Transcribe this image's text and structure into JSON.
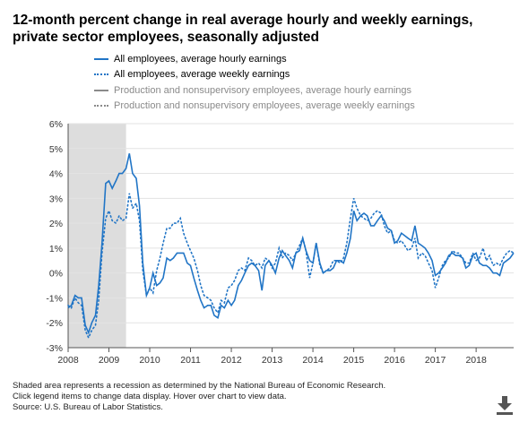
{
  "title": "12-month percent change in real average hourly and weekly earnings, private sector employees, seasonally adjusted",
  "legend": [
    {
      "label": "All employees, average hourly earnings",
      "color": "#2175c6",
      "style": "solid",
      "active": true
    },
    {
      "label": "All employees, average weekly earnings",
      "color": "#2175c6",
      "style": "dotted",
      "active": true
    },
    {
      "label": "Production and nonsupervisory employees, average hourly earnings",
      "color": "#8a8a8a",
      "style": "solid",
      "active": false
    },
    {
      "label": "Production and nonsupervisory employees, average weekly earnings",
      "color": "#8a8a8a",
      "style": "dotted",
      "active": false
    }
  ],
  "footnotes": [
    "Shaded area represents a recession as determined by the National Bureau of Economic Research.",
    "Click legend items to change data display. Hover over chart to view data.",
    "Source: U.S. Bureau of Labor Statistics."
  ],
  "icons": {
    "download": "download-icon"
  },
  "chart_data": {
    "type": "line",
    "title": "12-month percent change in real average hourly and weekly earnings, private sector employees, seasonally adjusted",
    "xlim": [
      2008.0,
      2018.92
    ],
    "ylim": [
      -3,
      6
    ],
    "y_ticks": [
      -3,
      -2,
      -1,
      0,
      1,
      2,
      3,
      4,
      5,
      6
    ],
    "y_tick_labels": [
      "-3%",
      "-2%",
      "-1%",
      "0%",
      "1%",
      "2%",
      "3%",
      "4%",
      "5%",
      "6%"
    ],
    "x_ticks": [
      2008,
      2009,
      2010,
      2011,
      2012,
      2013,
      2014,
      2015,
      2016,
      2017,
      2018
    ],
    "x_tick_labels": [
      "2008",
      "2009",
      "2010",
      "2011",
      "2012",
      "2013",
      "2014",
      "2015",
      "2016",
      "2017",
      "2018"
    ],
    "recession": {
      "start": 2008.0,
      "end": 2009.42,
      "color": "#dddddd"
    },
    "grid": "horizontal",
    "series": [
      {
        "name": "All employees, average hourly earnings",
        "color": "#2175c6",
        "style": "solid",
        "points": [
          [
            2008.0,
            -1.4
          ],
          [
            2008.08,
            -1.3
          ],
          [
            2008.17,
            -0.9
          ],
          [
            2008.25,
            -1.0
          ],
          [
            2008.33,
            -1.0
          ],
          [
            2008.42,
            -2.1
          ],
          [
            2008.5,
            -2.4
          ],
          [
            2008.58,
            -2.0
          ],
          [
            2008.67,
            -1.7
          ],
          [
            2008.75,
            -0.5
          ],
          [
            2008.83,
            1.2
          ],
          [
            2008.92,
            3.6
          ],
          [
            2009.0,
            3.7
          ],
          [
            2009.08,
            3.4
          ],
          [
            2009.17,
            3.7
          ],
          [
            2009.25,
            4.0
          ],
          [
            2009.33,
            4.0
          ],
          [
            2009.42,
            4.2
          ],
          [
            2009.5,
            4.8
          ],
          [
            2009.58,
            4.0
          ],
          [
            2009.67,
            3.8
          ],
          [
            2009.75,
            2.7
          ],
          [
            2009.83,
            0.4
          ],
          [
            2009.92,
            -0.9
          ],
          [
            2010.0,
            -0.6
          ],
          [
            2010.08,
            0.0
          ],
          [
            2010.17,
            -0.5
          ],
          [
            2010.25,
            -0.4
          ],
          [
            2010.33,
            -0.2
          ],
          [
            2010.42,
            0.6
          ],
          [
            2010.5,
            0.5
          ],
          [
            2010.58,
            0.6
          ],
          [
            2010.67,
            0.8
          ],
          [
            2010.75,
            0.8
          ],
          [
            2010.83,
            0.8
          ],
          [
            2010.92,
            0.4
          ],
          [
            2011.0,
            0.3
          ],
          [
            2011.08,
            -0.2
          ],
          [
            2011.17,
            -0.7
          ],
          [
            2011.25,
            -1.1
          ],
          [
            2011.33,
            -1.4
          ],
          [
            2011.42,
            -1.3
          ],
          [
            2011.5,
            -1.3
          ],
          [
            2011.58,
            -1.7
          ],
          [
            2011.67,
            -1.8
          ],
          [
            2011.75,
            -1.3
          ],
          [
            2011.83,
            -1.4
          ],
          [
            2011.92,
            -1.1
          ],
          [
            2012.0,
            -1.3
          ],
          [
            2012.08,
            -1.1
          ],
          [
            2012.17,
            -0.5
          ],
          [
            2012.25,
            -0.3
          ],
          [
            2012.33,
            0.0
          ],
          [
            2012.42,
            0.3
          ],
          [
            2012.5,
            0.4
          ],
          [
            2012.58,
            0.3
          ],
          [
            2012.67,
            0.1
          ],
          [
            2012.75,
            -0.7
          ],
          [
            2012.83,
            0.3
          ],
          [
            2012.92,
            0.5
          ],
          [
            2013.0,
            0.3
          ],
          [
            2013.08,
            0.0
          ],
          [
            2013.17,
            0.6
          ],
          [
            2013.25,
            0.9
          ],
          [
            2013.33,
            0.7
          ],
          [
            2013.42,
            0.5
          ],
          [
            2013.5,
            0.2
          ],
          [
            2013.58,
            0.8
          ],
          [
            2013.67,
            0.9
          ],
          [
            2013.75,
            1.4
          ],
          [
            2013.83,
            0.9
          ],
          [
            2013.92,
            0.5
          ],
          [
            2014.0,
            0.4
          ],
          [
            2014.08,
            1.2
          ],
          [
            2014.17,
            0.4
          ],
          [
            2014.25,
            0.0
          ],
          [
            2014.33,
            0.1
          ],
          [
            2014.42,
            0.1
          ],
          [
            2014.5,
            0.2
          ],
          [
            2014.58,
            0.5
          ],
          [
            2014.67,
            0.5
          ],
          [
            2014.75,
            0.4
          ],
          [
            2014.83,
            0.8
          ],
          [
            2014.92,
            1.4
          ],
          [
            2015.0,
            2.5
          ],
          [
            2015.08,
            2.1
          ],
          [
            2015.17,
            2.3
          ],
          [
            2015.25,
            2.4
          ],
          [
            2015.33,
            2.3
          ],
          [
            2015.42,
            1.9
          ],
          [
            2015.5,
            1.9
          ],
          [
            2015.58,
            2.1
          ],
          [
            2015.67,
            2.3
          ],
          [
            2015.75,
            2.1
          ],
          [
            2015.83,
            1.8
          ],
          [
            2015.92,
            1.7
          ],
          [
            2016.0,
            1.2
          ],
          [
            2016.08,
            1.3
          ],
          [
            2016.17,
            1.6
          ],
          [
            2016.25,
            1.5
          ],
          [
            2016.33,
            1.4
          ],
          [
            2016.42,
            1.3
          ],
          [
            2016.5,
            1.9
          ],
          [
            2016.58,
            1.2
          ],
          [
            2016.67,
            1.1
          ],
          [
            2016.75,
            1.0
          ],
          [
            2016.83,
            0.8
          ],
          [
            2016.92,
            0.5
          ],
          [
            2017.0,
            -0.1
          ],
          [
            2017.08,
            0.0
          ],
          [
            2017.17,
            0.2
          ],
          [
            2017.25,
            0.4
          ],
          [
            2017.33,
            0.7
          ],
          [
            2017.42,
            0.8
          ],
          [
            2017.5,
            0.7
          ],
          [
            2017.58,
            0.7
          ],
          [
            2017.67,
            0.6
          ],
          [
            2017.75,
            0.2
          ],
          [
            2017.83,
            0.3
          ],
          [
            2017.92,
            0.7
          ],
          [
            2018.0,
            0.8
          ],
          [
            2018.08,
            0.4
          ],
          [
            2018.17,
            0.3
          ],
          [
            2018.25,
            0.3
          ],
          [
            2018.33,
            0.2
          ],
          [
            2018.42,
            0.0
          ],
          [
            2018.5,
            0.0
          ],
          [
            2018.58,
            -0.1
          ],
          [
            2018.67,
            0.4
          ],
          [
            2018.75,
            0.5
          ],
          [
            2018.83,
            0.6
          ],
          [
            2018.92,
            0.8
          ]
        ]
      },
      {
        "name": "All employees, average weekly earnings",
        "color": "#2175c6",
        "style": "dotted",
        "points": [
          [
            2008.0,
            -1.3
          ],
          [
            2008.08,
            -1.4
          ],
          [
            2008.17,
            -1.0
          ],
          [
            2008.25,
            -1.2
          ],
          [
            2008.33,
            -1.3
          ],
          [
            2008.42,
            -2.3
          ],
          [
            2008.5,
            -2.6
          ],
          [
            2008.58,
            -2.3
          ],
          [
            2008.67,
            -2.1
          ],
          [
            2008.75,
            -1.1
          ],
          [
            2008.83,
            0.8
          ],
          [
            2008.92,
            2.2
          ],
          [
            2009.0,
            2.5
          ],
          [
            2009.08,
            2.1
          ],
          [
            2009.17,
            2.0
          ],
          [
            2009.25,
            2.3
          ],
          [
            2009.33,
            2.1
          ],
          [
            2009.42,
            2.2
          ],
          [
            2009.5,
            3.2
          ],
          [
            2009.58,
            2.6
          ],
          [
            2009.67,
            2.8
          ],
          [
            2009.75,
            2.1
          ],
          [
            2009.83,
            0.1
          ],
          [
            2009.92,
            -0.9
          ],
          [
            2010.0,
            -0.6
          ],
          [
            2010.08,
            -0.8
          ],
          [
            2010.17,
            0.1
          ],
          [
            2010.25,
            0.6
          ],
          [
            2010.33,
            1.2
          ],
          [
            2010.42,
            1.8
          ],
          [
            2010.5,
            1.8
          ],
          [
            2010.58,
            2.0
          ],
          [
            2010.67,
            2.0
          ],
          [
            2010.75,
            2.2
          ],
          [
            2010.83,
            1.6
          ],
          [
            2010.92,
            1.2
          ],
          [
            2011.0,
            0.9
          ],
          [
            2011.08,
            0.6
          ],
          [
            2011.17,
            0.1
          ],
          [
            2011.25,
            -0.5
          ],
          [
            2011.33,
            -0.9
          ],
          [
            2011.42,
            -1.0
          ],
          [
            2011.5,
            -1.1
          ],
          [
            2011.58,
            -1.4
          ],
          [
            2011.67,
            -1.6
          ],
          [
            2011.75,
            -1.1
          ],
          [
            2011.83,
            -1.2
          ],
          [
            2011.92,
            -0.6
          ],
          [
            2012.0,
            -0.5
          ],
          [
            2012.08,
            -0.3
          ],
          [
            2012.17,
            0.1
          ],
          [
            2012.25,
            0.2
          ],
          [
            2012.33,
            0.1
          ],
          [
            2012.42,
            0.6
          ],
          [
            2012.5,
            0.5
          ],
          [
            2012.58,
            0.3
          ],
          [
            2012.67,
            0.4
          ],
          [
            2012.75,
            0.2
          ],
          [
            2012.83,
            0.6
          ],
          [
            2012.92,
            0.5
          ],
          [
            2013.0,
            0.2
          ],
          [
            2013.08,
            0.4
          ],
          [
            2013.17,
            1.0
          ],
          [
            2013.25,
            0.6
          ],
          [
            2013.33,
            0.8
          ],
          [
            2013.42,
            0.7
          ],
          [
            2013.5,
            0.5
          ],
          [
            2013.58,
            0.8
          ],
          [
            2013.67,
            1.1
          ],
          [
            2013.75,
            1.4
          ],
          [
            2013.83,
            0.9
          ],
          [
            2013.92,
            -0.2
          ],
          [
            2014.0,
            0.4
          ],
          [
            2014.08,
            1.2
          ],
          [
            2014.17,
            0.3
          ],
          [
            2014.25,
            0.0
          ],
          [
            2014.33,
            0.1
          ],
          [
            2014.42,
            0.2
          ],
          [
            2014.5,
            0.5
          ],
          [
            2014.58,
            0.5
          ],
          [
            2014.67,
            0.4
          ],
          [
            2014.75,
            0.6
          ],
          [
            2014.83,
            1.2
          ],
          [
            2014.92,
            2.2
          ],
          [
            2015.0,
            3.0
          ],
          [
            2015.08,
            2.6
          ],
          [
            2015.17,
            2.3
          ],
          [
            2015.25,
            2.2
          ],
          [
            2015.33,
            2.1
          ],
          [
            2015.42,
            2.2
          ],
          [
            2015.5,
            2.4
          ],
          [
            2015.58,
            2.5
          ],
          [
            2015.67,
            2.4
          ],
          [
            2015.75,
            1.9
          ],
          [
            2015.83,
            1.6
          ],
          [
            2015.92,
            1.7
          ],
          [
            2016.0,
            1.3
          ],
          [
            2016.08,
            1.2
          ],
          [
            2016.17,
            1.3
          ],
          [
            2016.25,
            1.1
          ],
          [
            2016.33,
            0.9
          ],
          [
            2016.42,
            1.0
          ],
          [
            2016.5,
            1.4
          ],
          [
            2016.58,
            0.6
          ],
          [
            2016.67,
            0.8
          ],
          [
            2016.75,
            0.7
          ],
          [
            2016.83,
            0.4
          ],
          [
            2016.92,
            0.1
          ],
          [
            2017.0,
            -0.6
          ],
          [
            2017.08,
            -0.2
          ],
          [
            2017.17,
            0.3
          ],
          [
            2017.25,
            0.5
          ],
          [
            2017.33,
            0.6
          ],
          [
            2017.42,
            0.9
          ],
          [
            2017.5,
            0.8
          ],
          [
            2017.58,
            0.8
          ],
          [
            2017.67,
            0.6
          ],
          [
            2017.75,
            0.4
          ],
          [
            2017.83,
            0.4
          ],
          [
            2017.92,
            0.8
          ],
          [
            2018.0,
            0.5
          ],
          [
            2018.08,
            0.6
          ],
          [
            2018.17,
            1.0
          ],
          [
            2018.25,
            0.5
          ],
          [
            2018.33,
            0.7
          ],
          [
            2018.42,
            0.3
          ],
          [
            2018.5,
            0.4
          ],
          [
            2018.58,
            0.3
          ],
          [
            2018.67,
            0.6
          ],
          [
            2018.75,
            0.8
          ],
          [
            2018.83,
            0.9
          ],
          [
            2018.92,
            0.8
          ]
        ]
      }
    ]
  }
}
